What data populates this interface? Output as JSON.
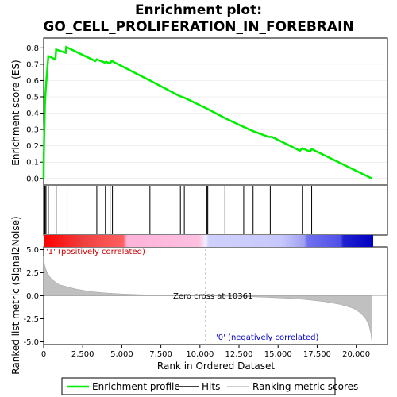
{
  "chart_data": {
    "type": "line",
    "title_line1": "Enrichment plot:",
    "title_line2": "GO_CELL_PROLIFERATION_IN_FOREBRAIN",
    "top_panel": {
      "ylabel": "Enrichment score (ES)",
      "ylim": [
        -0.04,
        0.86
      ],
      "yticks": [
        "0.0",
        "0.1",
        "0.2",
        "0.3",
        "0.4",
        "0.5",
        "0.6",
        "0.7",
        "0.8"
      ],
      "ytick_values": [
        0.0,
        0.1,
        0.2,
        0.3,
        0.4,
        0.5,
        0.6,
        0.7,
        0.8
      ],
      "series": [
        {
          "name": "Enrichment profile",
          "color": "#00ff00",
          "x": [
            0,
            10,
            30,
            60,
            80,
            120,
            200,
            300,
            750,
            800,
            1400,
            1450,
            3300,
            3400,
            3900,
            4000,
            4250,
            4350,
            6800,
            8700,
            9000,
            10400,
            10500,
            11600,
            12700,
            13400,
            14400,
            14600,
            16400,
            16550,
            17050,
            17150,
            21000
          ],
          "y": [
            0.0,
            0.13,
            0.24,
            0.36,
            0.45,
            0.53,
            0.63,
            0.75,
            0.73,
            0.79,
            0.77,
            0.805,
            0.72,
            0.73,
            0.71,
            0.715,
            0.705,
            0.72,
            0.6,
            0.505,
            0.495,
            0.43,
            0.425,
            0.37,
            0.32,
            0.29,
            0.255,
            0.255,
            0.17,
            0.185,
            0.165,
            0.18,
            0.0
          ]
        }
      ]
    },
    "hits": {
      "name": "Hits",
      "x": [
        20,
        50,
        90,
        150,
        300,
        800,
        1500,
        3400,
        3950,
        4250,
        4400,
        6800,
        8750,
        9000,
        10400,
        10450,
        10500,
        11600,
        12800,
        13400,
        14500,
        16550,
        17150
      ]
    },
    "color_bar": {
      "stops": [
        "#ff0000",
        "#ff9ad0",
        "#ffffff",
        "#a9a9ff",
        "#0000d0"
      ]
    },
    "bottom_panel": {
      "ylabel": "Ranked list metric (Signal2Noise)",
      "ylim": [
        -5.3,
        5.3
      ],
      "yticks": [
        "5.0",
        "2.5",
        "0.0",
        "-2.5",
        "-5.0"
      ],
      "ytick_values": [
        5.0,
        2.5,
        0.0,
        -2.5,
        -5.0
      ],
      "series": [
        {
          "name": "Ranking metric scores",
          "color": "#c0c0c0",
          "x": [
            0,
            50,
            200,
            500,
            1000,
            2000,
            3000,
            4000,
            5000,
            6000,
            8000,
            10361,
            12000,
            14000,
            16000,
            17000,
            18000,
            19000,
            19800,
            20300,
            20600,
            20800,
            20950,
            21000
          ],
          "y": [
            4.3,
            3.4,
            2.6,
            1.8,
            1.2,
            0.75,
            0.45,
            0.3,
            0.2,
            0.13,
            0.05,
            0.0,
            -0.05,
            -0.15,
            -0.3,
            -0.45,
            -0.65,
            -0.95,
            -1.35,
            -1.9,
            -2.5,
            -3.1,
            -4.2,
            -5.0
          ]
        }
      ],
      "pos_label": "'1' (positively correlated)",
      "neg_label": "'0' (negatively correlated)",
      "zero_cross": "Zero cross at 10361",
      "zero_cross_x": 10361
    },
    "xlabel": "Rank in Ordered Dataset",
    "xlim": [
      0,
      22000
    ],
    "xticks": [
      "0",
      "2,500",
      "5,000",
      "7,500",
      "10,000",
      "12,500",
      "15,000",
      "17,500",
      "20,000"
    ],
    "xtick_values": [
      0,
      2500,
      5000,
      7500,
      10000,
      12500,
      15000,
      17500,
      20000
    ],
    "legend": {
      "placement": "bottom",
      "items": [
        {
          "label": "Enrichment profile",
          "color": "#00ff00"
        },
        {
          "label": "Hits",
          "color": "#000000"
        },
        {
          "label": "Ranking metric scores",
          "color": "#c0c0c0"
        }
      ]
    }
  }
}
